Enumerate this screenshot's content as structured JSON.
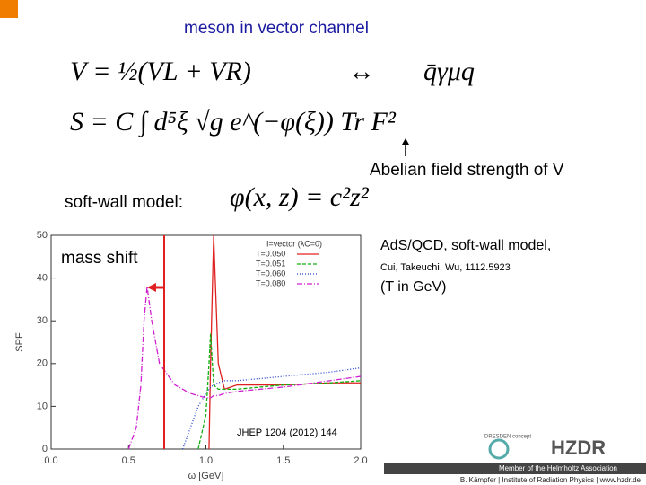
{
  "slide": {
    "title": "meson in vector channel",
    "eq_vector": "V = ½(VL + VR)",
    "eq_arrow": "↔",
    "eq_current": "q̄γμq",
    "eq_action": "S = C ∫ d⁵ξ √g e^(−φ(ξ)) Tr F²",
    "abelian_note": "Abelian field strength of V",
    "softwall_label": "soft-wall model:",
    "softwall_eq": "φ(x, z) = c²z²",
    "mass_shift": "mass shift",
    "ref_title": "AdS/QCD, soft-wall model,",
    "ref_authors": "Cui, Takeuchi, Wu, 1112.5923",
    "ref_units": "(T in GeV)",
    "journal": "JHEP 1204 (2012) 144",
    "logo_left": "DRESDEN concept",
    "logo_right": "HZDR",
    "footer_1": "Member of the Helmholtz Association",
    "footer_2": "B. Kämpfer  |  Institute of Radiation Physics  |  www.hzdr.de"
  },
  "chart_data": {
    "type": "line",
    "xlabel": "ω [GeV]",
    "ylabel": "SPF",
    "legend_title": "I=vector (λC=0)",
    "legend": "upper right",
    "x": [
      0.5,
      0.55,
      0.58,
      0.6,
      0.62,
      0.65,
      0.7,
      0.8,
      0.85,
      0.9,
      0.95,
      1.0,
      1.02,
      1.03,
      1.05,
      1.08,
      1.12,
      1.2,
      1.5,
      1.8,
      2.0
    ],
    "series": [
      {
        "name": "T=0.050",
        "color": "#e02020",
        "dash": "",
        "values": [
          null,
          null,
          null,
          null,
          null,
          null,
          null,
          null,
          null,
          null,
          null,
          null,
          0,
          20,
          50,
          20,
          14,
          15,
          15,
          15.5,
          15.5
        ]
      },
      {
        "name": "T=0.051",
        "color": "#10b010",
        "dash": "4 2",
        "values": [
          null,
          null,
          null,
          null,
          null,
          null,
          null,
          null,
          null,
          null,
          0,
          8,
          20,
          27,
          15,
          14,
          14,
          14,
          15,
          15.5,
          16
        ]
      },
      {
        "name": "T=0.060",
        "color": "#2040d0",
        "dash": "1 2",
        "values": [
          null,
          null,
          null,
          null,
          null,
          null,
          null,
          null,
          0,
          5,
          10,
          13,
          14,
          14.5,
          15,
          15.5,
          16,
          16,
          17,
          18,
          19
        ]
      },
      {
        "name": "T=0.080",
        "color": "#d020d0",
        "dash": "6 2 1 2",
        "values": [
          0,
          5,
          15,
          30,
          38,
          30,
          20,
          15,
          14,
          13,
          12.5,
          12,
          12,
          12,
          12.5,
          12.5,
          13,
          13.5,
          14.5,
          16,
          17
        ]
      }
    ],
    "xlim": [
      0,
      2
    ],
    "ylim": [
      0,
      50
    ],
    "xticks": [
      {
        "value": 0,
        "label": "0.0"
      },
      {
        "value": 0.5,
        "label": "0.5"
      },
      {
        "value": 1,
        "label": "1.0"
      },
      {
        "value": 1.5,
        "label": "1.5"
      },
      {
        "value": 2,
        "label": "2.0"
      }
    ],
    "yticks": [
      0,
      10,
      20,
      30,
      40,
      50
    ]
  }
}
